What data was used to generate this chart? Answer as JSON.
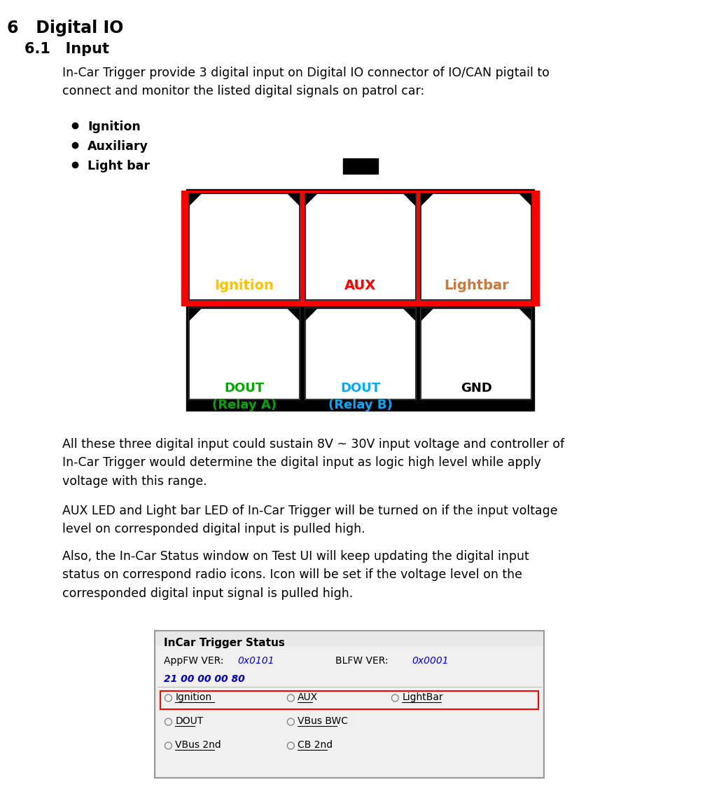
{
  "bg_color": "#ffffff",
  "heading1": "6   Digital IO",
  "heading2": "6.1   Input",
  "para1": "In-Car Trigger provide 3 digital input on Digital IO connector of IO/CAN pigtail to\nconnect and monitor the listed digital signals on patrol car:",
  "bullets": [
    "Ignition",
    "Auxiliary",
    "Light bar"
  ],
  "para2": "All these three digital input could sustain 8V ~ 30V input voltage and controller of\nIn-Car Trigger would determine the digital input as logic high level while apply\nvoltage with this range.",
  "para3": "AUX LED and Light bar LED of In-Car Trigger will be turned on if the input voltage\nlevel on corresponded digital input is pulled high.",
  "para4": "Also, the In-Car Status window on Test UI will keep updating the digital input\nstatus on correspond radio icons. Icon will be set if the voltage level on the\ncorresponded digital input signal is pulled high.",
  "connector_labels_top": [
    "Ignition",
    "AUX",
    "Lightbar"
  ],
  "connector_colors_top": [
    "#FFC200",
    "#FF0000",
    "#C87941"
  ],
  "connector_labels_bot": [
    "DOUT\n(Relay A)",
    "DOUT\n(Relay B)",
    "GND"
  ],
  "connector_colors_bot": [
    "#00AA00",
    "#00AAFF",
    "#000000"
  ],
  "status_title": "InCar Trigger Status",
  "appfw_label": "AppFW VER:",
  "appfw_val": "0x0101",
  "blfw_label": "BLFW VER:",
  "blfw_val": "0x0001",
  "hex_val": "21 00 00 00 80",
  "radio_row1": [
    "Ignition",
    "AUX",
    "LightBar"
  ],
  "radio_row2": [
    "DOUT",
    "VBus BWC"
  ],
  "radio_row3": [
    "VBus 2nd",
    "CB 2nd"
  ]
}
